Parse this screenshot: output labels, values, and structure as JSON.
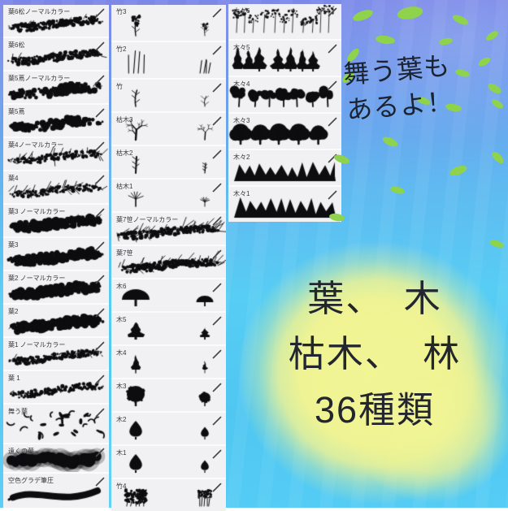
{
  "colors": {
    "sky_top": "#7d86e8",
    "sky_bottom": "#55ccf4",
    "leaf_green": "#8fd24b",
    "blob_yellow": "#eff393",
    "panel_bg": "#f1f1f3",
    "ink": "#0d0d0f",
    "label_text": "#38383c"
  },
  "badge": {
    "line1": "舞う葉も",
    "line2": "あるよ！"
  },
  "headline": {
    "line1": "葉、　木",
    "line2": "枯木、　林",
    "line3": "36種類"
  },
  "brush_columns": [
    {
      "panels": [
        {
          "label": "葉6松ノーマルカラー",
          "art": "pine-stroke-art",
          "icon": "pencil-icon"
        },
        {
          "label": "葉6松",
          "art": "pine-stroke-art",
          "icon": "pencil-icon"
        },
        {
          "label": "葉5蔦ノーマルカラー",
          "art": "clump-stroke-art",
          "icon": "pencil-icon"
        },
        {
          "label": "葉5蔦",
          "art": "clump-stroke-art",
          "icon": "pencil-icon"
        },
        {
          "label": "葉4ノーマルカラー",
          "art": "spiky-stroke-art",
          "icon": "pencil-icon"
        },
        {
          "label": "葉4",
          "art": "spiky-stroke-art",
          "icon": "pencil-icon"
        },
        {
          "label": "葉3 ノーマルカラー",
          "art": "dense-stroke-art",
          "icon": "pencil-icon"
        },
        {
          "label": "葉3",
          "art": "dense-stroke-art",
          "icon": "pencil-icon"
        },
        {
          "label": "葉2 ノーマルカラー",
          "art": "dense-stroke-art",
          "icon": "pencil-icon"
        },
        {
          "label": "葉2",
          "art": "dense-stroke-art",
          "icon": "pencil-icon"
        },
        {
          "label": "葉1 ノーマルカラー",
          "art": "fine-stroke-art",
          "icon": "pencil-icon"
        },
        {
          "label": "葉 1",
          "art": "fine-stroke-art",
          "icon": "pencil-icon"
        },
        {
          "label": "舞う葉",
          "art": "scatter-leaves-art",
          "icon": "pencil-icon"
        },
        {
          "label": "遠くの葉",
          "art": "fluffy-stroke-art",
          "icon": "pencil-icon"
        },
        {
          "label": "空色グラデ筆圧",
          "art": "smooth-stroke-art",
          "icon": "pencil-icon"
        }
      ]
    },
    {
      "panels": [
        {
          "label": "竹3",
          "art": "bamboo-flower-art",
          "icon": "pencil-icon"
        },
        {
          "label": "竹2",
          "art": "bamboo-multi-art",
          "icon": "pencil-icon"
        },
        {
          "label": "竹",
          "art": "bamboo-single-art",
          "icon": "pencil-icon"
        },
        {
          "label": "枯木3",
          "art": "dead-tree-branchy-art",
          "icon": "pencil-icon"
        },
        {
          "label": "枯木2",
          "art": "dead-tree-stub-art",
          "icon": "pencil-icon"
        },
        {
          "label": "枯木1",
          "art": "dead-tree-bare-art",
          "icon": "pencil-icon"
        },
        {
          "label": "葉7笹ノーマルカラー",
          "art": "sasa-stroke-art",
          "icon": "pencil-icon"
        },
        {
          "label": "葉7笹",
          "art": "sasa-stroke-art",
          "icon": "pencil-icon"
        },
        {
          "label": "木6",
          "art": "tree-dome-art",
          "icon": "pencil-icon"
        },
        {
          "label": "木5",
          "art": "tree-conifer-art",
          "icon": "pencil-icon"
        },
        {
          "label": "木4",
          "art": "tree-narrow-art",
          "icon": "pencil-icon"
        },
        {
          "label": "木3",
          "art": "tree-oval-art",
          "icon": "pencil-icon"
        },
        {
          "label": "木2",
          "art": "tree-teardrop-art",
          "icon": "pencil-icon"
        },
        {
          "label": "木1",
          "art": "tree-teardrop-art",
          "icon": "pencil-icon"
        },
        {
          "label": "竹4",
          "art": "bamboo-grove-art",
          "icon": "pencil-icon"
        }
      ]
    },
    {
      "panels": [
        {
          "label": "木々6",
          "art": "forest-sketch-art",
          "icon": "pencil-icon"
        },
        {
          "label": "木々5",
          "art": "forest-conifer-art",
          "icon": "pencil-icon"
        },
        {
          "label": "木々4",
          "art": "forest-trunk-art",
          "icon": "pencil-icon"
        },
        {
          "label": "木々3",
          "art": "forest-round-art",
          "icon": "pencil-icon"
        },
        {
          "label": "木々2",
          "art": "forest-jagged-art",
          "icon": "pencil-icon"
        },
        {
          "label": "木々1",
          "art": "forest-jagged-art",
          "icon": "pencil-icon"
        }
      ]
    }
  ]
}
